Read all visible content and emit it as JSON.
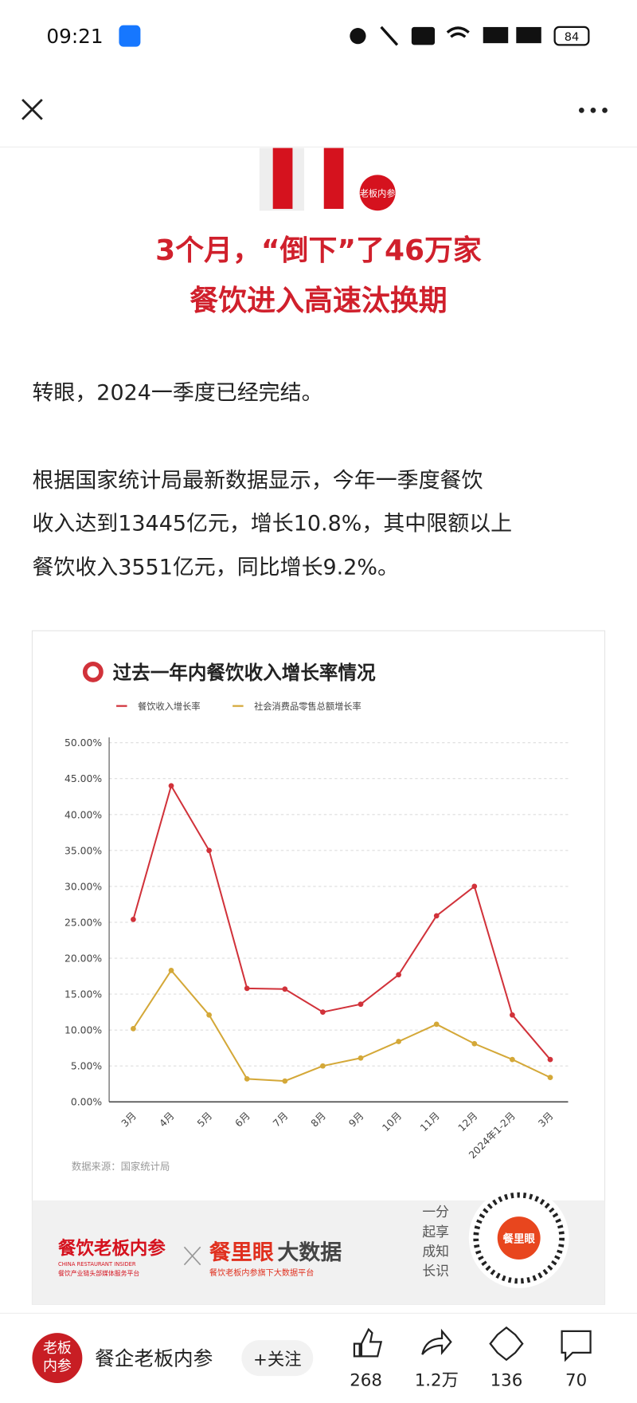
{
  "status_bar": {
    "time": "09:21",
    "battery": "84"
  },
  "header_logo": "老板内参",
  "article": {
    "headline": [
      "3个月，“倒下”了46万家",
      "餐饮进入高速汰换期"
    ],
    "paragraphs": [
      [
        "转眼，2024一季度已经完结。"
      ],
      [
        "根据国家统计局最新数据显示，今年一季度餐饮",
        "收入达到13445亿元，增长10.8%，其中限额以上",
        "餐饮收入3551亿元，同比增长9.2%。"
      ]
    ]
  },
  "chart_data": {
    "type": "line",
    "title": "过去一年内餐饮收入增长率情况",
    "categories": [
      "3月",
      "4月",
      "5月",
      "6月",
      "7月",
      "8月",
      "9月",
      "10月",
      "11月",
      "12月",
      "2024年1-2月",
      "3月"
    ],
    "series": [
      {
        "name": "餐饮收入增长率",
        "color": "#d1323a",
        "values": [
          25.4,
          44.0,
          35.0,
          15.8,
          15.7,
          12.5,
          13.6,
          17.7,
          25.9,
          30.0,
          12.1,
          5.9
        ]
      },
      {
        "name": "社会消费品零售总额增长率",
        "color": "#d4a838",
        "values": [
          10.2,
          18.3,
          12.1,
          3.2,
          2.9,
          5.0,
          6.1,
          8.4,
          10.8,
          8.1,
          5.9,
          3.4
        ]
      }
    ],
    "ylim": [
      0,
      50
    ],
    "yticks": [
      {
        "value": 0,
        "label": "0.00%"
      },
      {
        "value": 5,
        "label": "5.00%"
      },
      {
        "value": 10,
        "label": "10.00%"
      },
      {
        "value": 15,
        "label": "15.00%"
      },
      {
        "value": 20,
        "label": "20.00%"
      },
      {
        "value": 25,
        "label": "25.00%"
      },
      {
        "value": 30,
        "label": "30.00%"
      },
      {
        "value": 35,
        "label": "35.00%"
      },
      {
        "value": 40,
        "label": "40.00%"
      },
      {
        "value": 45,
        "label": "45.00%"
      },
      {
        "value": 50,
        "label": "50.00%"
      }
    ],
    "grid": true,
    "source": "数据来源：国家统计局"
  },
  "banner": {
    "brand": "餐饮老板内参",
    "brand_en": "CHINA RESTAURANT INSIDER",
    "brand_sub": "餐饮产业链头部媒体服务平台",
    "partner": "餐里眼",
    "partner_suffix": "大数据",
    "partner_sub": "餐饮老板内参旗下大数据平台",
    "slogan": [
      "一分",
      "起享",
      "成知",
      "长识"
    ],
    "qr_label": "餐里眼"
  },
  "bottom_bar": {
    "avatar": [
      "老板",
      "内参"
    ],
    "account": "餐企老板内参",
    "follow": "+关注",
    "likes": 268,
    "shares": "1.2万",
    "favorites": 136,
    "comments": 70
  }
}
